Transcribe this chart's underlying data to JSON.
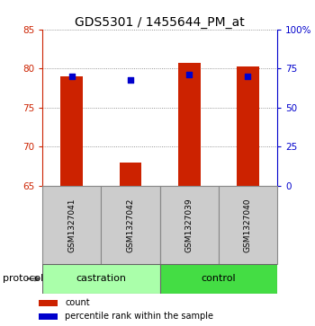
{
  "title": "GDS5301 / 1455644_PM_at",
  "samples": [
    "GSM1327041",
    "GSM1327042",
    "GSM1327039",
    "GSM1327040"
  ],
  "bar_bottoms": [
    65,
    65,
    65,
    65
  ],
  "bar_tops": [
    79.0,
    68.0,
    80.7,
    80.3
  ],
  "blue_dots": [
    79.0,
    78.5,
    79.2,
    79.0
  ],
  "ylim_left": [
    65,
    85
  ],
  "ylim_right": [
    0,
    100
  ],
  "yticks_left": [
    65,
    70,
    75,
    80,
    85
  ],
  "yticks_right": [
    0,
    25,
    50,
    75,
    100
  ],
  "ytick_labels_right": [
    "0",
    "25",
    "50",
    "75",
    "100%"
  ],
  "bar_color": "#cc2200",
  "dot_color": "#0000cc",
  "left_axis_color": "#cc2200",
  "right_axis_color": "#0000cc",
  "groups": [
    {
      "label": "castration",
      "color": "#aaffaa"
    },
    {
      "label": "control",
      "color": "#44dd44"
    }
  ],
  "protocol_label": "protocol",
  "legend_count_label": "count",
  "legend_pct_label": "percentile rank within the sample",
  "background_color": "#ffffff",
  "plot_area_color": "#ffffff",
  "bar_width": 0.38,
  "title_fontsize": 10,
  "tick_fontsize": 7.5,
  "sample_fontsize": 6.5,
  "group_fontsize": 8,
  "legend_fontsize": 7
}
